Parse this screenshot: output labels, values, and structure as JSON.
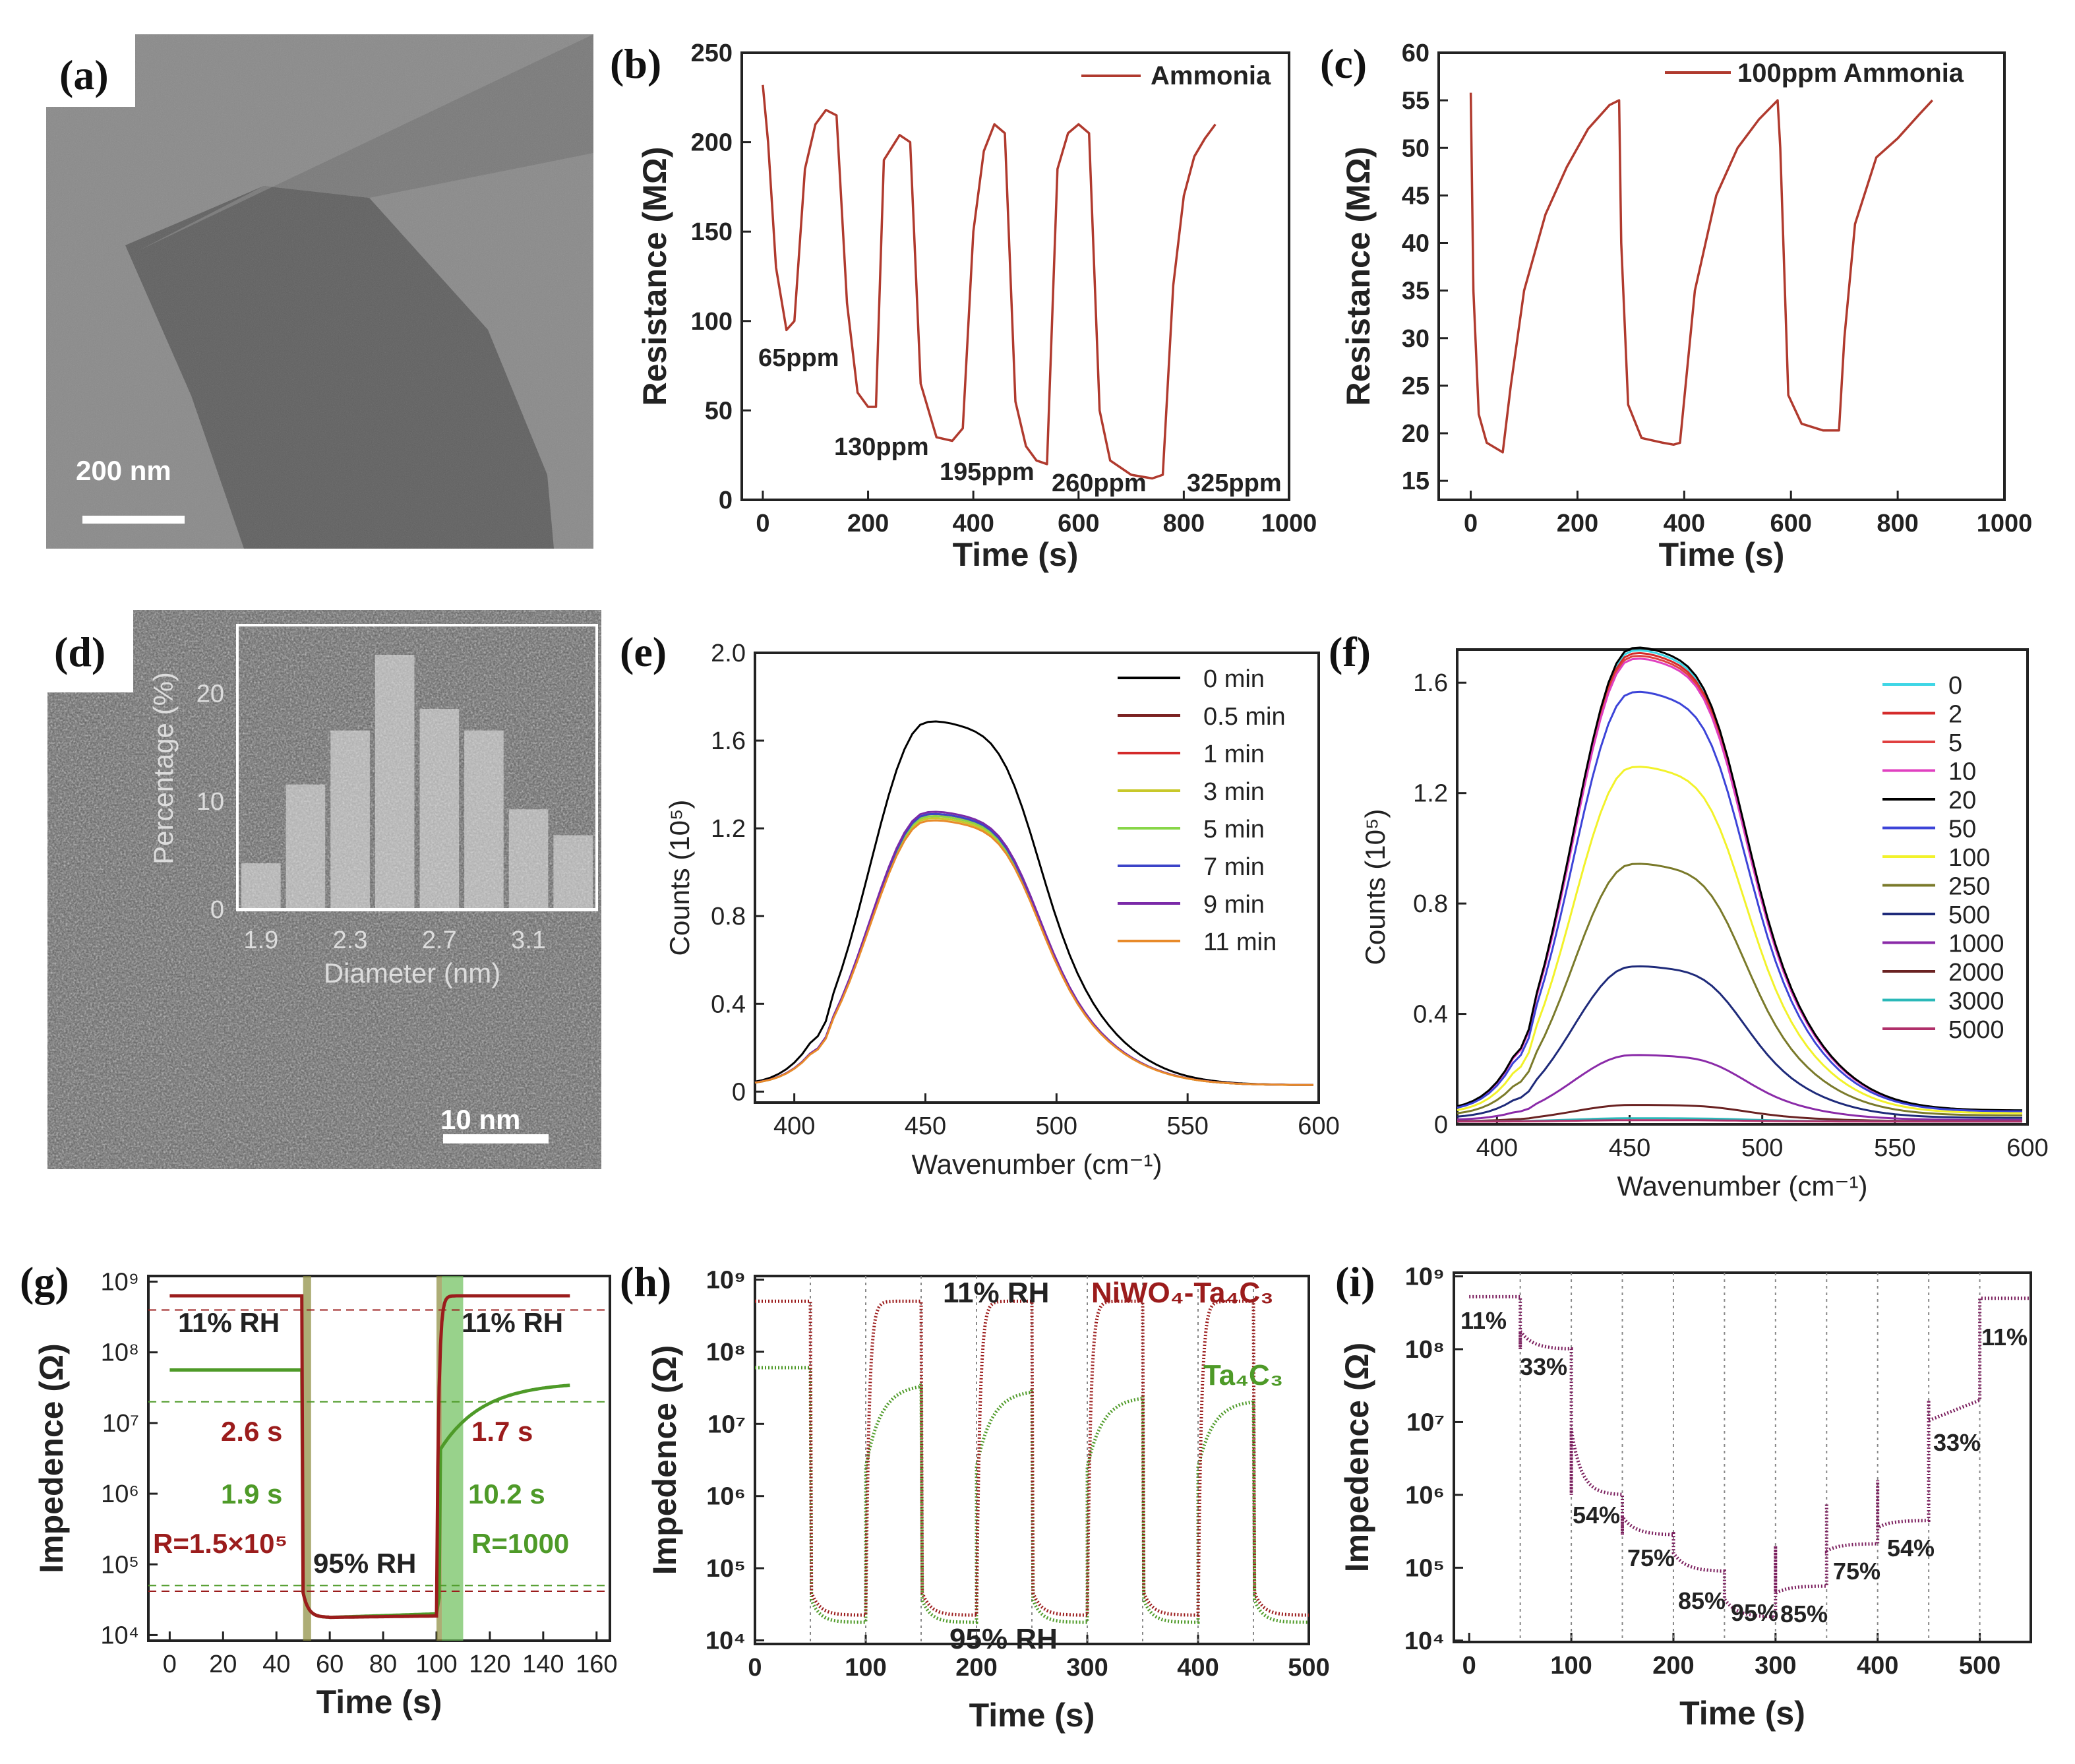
{
  "colors": {
    "sensor_line": "#b03a2e",
    "niwo4": "#9b1c1c",
    "ta4c3": "#4e9a28",
    "rh_curve": "#7b1f5e",
    "tem_bg": "#7d7d7d"
  },
  "chart_data": [
    {
      "panel": "(a)",
      "type": "image",
      "description_label": "TEM image",
      "scale_bar": "200  nm"
    },
    {
      "panel": "(b)",
      "type": "line",
      "xlabel": "Time (s)",
      "ylabel": "Resistance (MΩ)",
      "xlim": [
        -40,
        1000
      ],
      "ylim": [
        0,
        250
      ],
      "xticks": [
        "0",
        "200",
        "400",
        "600",
        "800",
        "1000"
      ],
      "yticks": [
        "0",
        "50",
        "100",
        "150",
        "200",
        "250"
      ],
      "legend": [
        "Ammonia"
      ],
      "series": [
        {
          "name": "Ammonia",
          "x": [
            0,
            10,
            25,
            45,
            60,
            80,
            100,
            120,
            140,
            160,
            180,
            200,
            215,
            230,
            260,
            280,
            300,
            330,
            360,
            380,
            400,
            420,
            440,
            460,
            480,
            500,
            520,
            540,
            560,
            580,
            600,
            620,
            640,
            660,
            700,
            740,
            760,
            780,
            800,
            820,
            840,
            860
          ],
          "y": [
            232,
            200,
            130,
            95,
            100,
            185,
            210,
            218,
            215,
            110,
            60,
            52,
            52,
            190,
            204,
            200,
            65,
            35,
            33,
            40,
            150,
            195,
            210,
            205,
            55,
            30,
            22,
            20,
            185,
            205,
            210,
            205,
            50,
            22,
            14,
            12,
            14,
            120,
            170,
            192,
            202,
            210
          ]
        }
      ],
      "annotations": [
        "65ppm",
        "130ppm",
        "195ppm",
        "260ppm",
        "325ppm"
      ]
    },
    {
      "panel": "(c)",
      "type": "line",
      "xlabel": "Time (s)",
      "ylabel": "Resistance (MΩ)",
      "xlim": [
        -60,
        1000
      ],
      "ylim": [
        13,
        60
      ],
      "xticks": [
        "0",
        "200",
        "400",
        "600",
        "800",
        "1000"
      ],
      "yticks": [
        "15",
        "20",
        "25",
        "30",
        "35",
        "40",
        "45",
        "50",
        "55",
        "60"
      ],
      "legend": [
        "100ppm Ammonia"
      ],
      "series": [
        {
          "name": "100ppm Ammonia",
          "x": [
            0,
            5,
            15,
            30,
            60,
            75,
            100,
            140,
            180,
            220,
            260,
            278,
            282,
            295,
            320,
            360,
            380,
            392,
            420,
            460,
            500,
            540,
            575,
            580,
            595,
            620,
            660,
            690,
            700,
            720,
            760,
            800,
            840,
            865
          ],
          "y": [
            55.8,
            35,
            22,
            19,
            18,
            25,
            35,
            43,
            48,
            52,
            54.5,
            55,
            40,
            23,
            19.5,
            19,
            18.8,
            19,
            35,
            45,
            50,
            53,
            55,
            50,
            24,
            21,
            20.3,
            20.3,
            30,
            42,
            49,
            51,
            53.5,
            55
          ]
        }
      ]
    },
    {
      "panel": "(d)",
      "type": "bar",
      "inset": true,
      "xlabel": "Diameter (nm)",
      "ylabel": "Percentage (%)",
      "categories": [
        "1.9",
        "2.1",
        "2.3",
        "2.5",
        "2.7",
        "2.9",
        "3.1",
        "3.3"
      ],
      "xticks": [
        "1.9",
        "2.3",
        "2.7",
        "3.1"
      ],
      "yticks": [
        "0",
        "10",
        "20"
      ],
      "values": [
        4.2,
        11.5,
        16.5,
        23.5,
        18.5,
        16.5,
        9.2,
        6.8
      ],
      "ylim": [
        0,
        26
      ],
      "scale_bar": "10 nm"
    },
    {
      "panel": "(e)",
      "type": "line",
      "xlabel": "Wavenumber (cm⁻¹)",
      "ylabel": "Counts (10⁵)",
      "xlim": [
        385,
        600
      ],
      "ylim": [
        -0.05,
        2.0
      ],
      "xticks": [
        "400",
        "450",
        "500",
        "550",
        "600"
      ],
      "yticks": [
        "0",
        "0.4",
        "0.8",
        "1.2",
        "1.6",
        "2.0"
      ],
      "legend": [
        "0  min",
        "0.5 min",
        "1  min",
        "3  min",
        "5  min",
        "7  min",
        "9  min",
        "11 min"
      ],
      "series_colors": [
        "#000000",
        "#7b2222",
        "#d42a2a",
        "#c8c82a",
        "#88d648",
        "#3c44c8",
        "#7a2aa8",
        "#e88a2a"
      ],
      "peak_values": [
        1.69,
        1.26,
        1.25,
        1.24,
        1.25,
        1.26,
        1.27,
        1.23
      ]
    },
    {
      "panel": "(f)",
      "type": "line",
      "xlabel": "Wavenumber (cm⁻¹)",
      "ylabel": "Counts (10⁵)",
      "xlim": [
        385,
        600
      ],
      "ylim": [
        0,
        1.72
      ],
      "xticks": [
        "400",
        "450",
        "500",
        "550",
        "600"
      ],
      "yticks": [
        "0",
        "0.4",
        "0.8",
        "1.2",
        "1.6"
      ],
      "legend": [
        "0",
        "2",
        "5",
        "10",
        "20",
        "50",
        "100",
        "250",
        "500",
        "1000",
        "2000",
        "3000",
        "5000"
      ],
      "series_colors": [
        "#3fd6e6",
        "#d42a2a",
        "#e04040",
        "#e040c0",
        "#000000",
        "#3c44d8",
        "#f2f22a",
        "#7a7a2a",
        "#1e2a7a",
        "#8a2aa8",
        "#6a2222",
        "#2ab8b8",
        "#b0306a"
      ],
      "peak_values": [
        1.7,
        1.69,
        1.68,
        1.67,
        1.71,
        1.55,
        1.28,
        0.93,
        0.56,
        0.24,
        0.06,
        0.012,
        0.005
      ]
    },
    {
      "panel": "(g)",
      "type": "line",
      "xlabel": "Time (s)",
      "ylabel": "Impedence (Ω)",
      "yscale": "log",
      "xlim": [
        -8,
        165
      ],
      "ylim_log10": [
        3.92,
        9.08
      ],
      "xticks": [
        "0",
        "20",
        "40",
        "60",
        "80",
        "100",
        "120",
        "140",
        "160"
      ],
      "yticks": [
        "10⁴",
        "10⁵",
        "10⁶",
        "10⁷",
        "10⁸",
        "10⁹"
      ],
      "series": [
        {
          "name": "NiWO4-Ta4C3",
          "x": [
            0,
            50,
            52,
            60,
            100,
            102,
            105,
            150
          ],
          "log10_y": [
            8.8,
            8.8,
            4.6,
            4.25,
            4.27,
            8.7,
            8.75,
            8.8
          ]
        },
        {
          "name": "Ta4C3",
          "x": [
            0,
            50,
            52,
            60,
            100,
            102,
            110,
            150
          ],
          "log10_y": [
            7.75,
            7.75,
            4.6,
            4.25,
            4.3,
            6.9,
            7.2,
            7.58
          ]
        }
      ],
      "annotations": [
        "11% RH",
        "11% RH",
        "2.6 s",
        "1.7 s",
        "1.9 s",
        "10.2 s",
        "R=1.5×10⁵",
        "R=1000",
        "95% RH"
      ]
    },
    {
      "panel": "(h)",
      "type": "line",
      "xlabel": "Time (s)",
      "ylabel": "Impedence (Ω)",
      "yscale": "log",
      "xlim": [
        0,
        500
      ],
      "ylim_log10": [
        3.95,
        9.05
      ],
      "xticks": [
        "0",
        "100",
        "200",
        "300",
        "400",
        "500"
      ],
      "yticks": [
        "10⁴",
        "10⁵",
        "10⁶",
        "10⁷",
        "10⁸",
        "10⁹"
      ],
      "legend": [
        "NiWO₄-Ta₄C₃",
        "Ta₄C₃"
      ],
      "cycle_high_log10": {
        "NiWO4-Ta4C3": 8.7,
        "Ta4C3": [
          7.8,
          7.55,
          7.45,
          7.38,
          7.33
        ]
      },
      "cycle_low_log10": {
        "NiWO4-Ta4C3": 4.35,
        "Ta4C3": 4.25
      },
      "annotations": [
        "11% RH",
        "95% RH"
      ]
    },
    {
      "panel": "(i)",
      "type": "line",
      "xlabel": "Time (s)",
      "ylabel": "Impedence (Ω)",
      "yscale": "log",
      "xlim": [
        -15,
        550
      ],
      "ylim_log10": [
        3.98,
        9.05
      ],
      "xticks": [
        "0",
        "100",
        "200",
        "300",
        "400",
        "500"
      ],
      "yticks": [
        "10⁴",
        "10⁵",
        "10⁶",
        "10⁷",
        "10⁸",
        "10⁹"
      ],
      "steps": [
        {
          "label": "11%",
          "start": 0,
          "log10_y": 8.72
        },
        {
          "label": "33%",
          "start": 50,
          "log10_y": 8.0
        },
        {
          "label": "54%",
          "start": 100,
          "log10_y": 6.0
        },
        {
          "label": "75%",
          "start": 150,
          "log10_y": 5.45
        },
        {
          "label": "85%",
          "start": 200,
          "log10_y": 4.95
        },
        {
          "label": "95%",
          "start": 250,
          "log10_y": 4.32
        },
        {
          "label": "85%",
          "start": 300,
          "log10_y": 4.75
        },
        {
          "label": "75%",
          "start": 350,
          "log10_y": 5.33
        },
        {
          "label": "54%",
          "start": 400,
          "log10_y": 5.65
        },
        {
          "label": "33%",
          "start": 450,
          "log10_y": 7.3
        },
        {
          "label": "11%",
          "start": 500,
          "log10_y": 8.7
        }
      ]
    }
  ]
}
